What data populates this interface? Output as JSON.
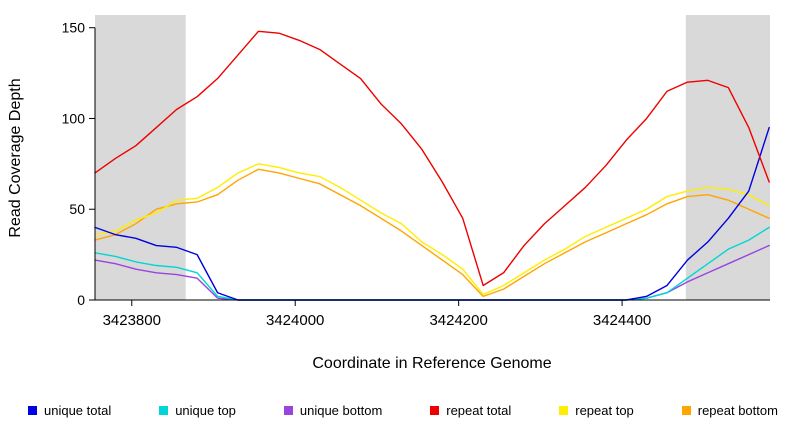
{
  "chart_data": {
    "type": "line",
    "title": "",
    "xlabel": "Coordinate in Reference Genome",
    "ylabel": "Read Coverage Depth",
    "xlim": [
      3423755,
      3424581
    ],
    "ylim": [
      0,
      157
    ],
    "xticks": [
      3423800,
      3424000,
      3424200,
      3424400
    ],
    "yticks": [
      0,
      50,
      100,
      150
    ],
    "grid": false,
    "legend_position": "bottom",
    "shaded_regions": [
      {
        "x0": 3423755,
        "x1": 3423866,
        "color": "#d9d9d9"
      },
      {
        "x0": 3424478,
        "x1": 3424581,
        "color": "#d9d9d9"
      }
    ],
    "x": [
      3423755,
      3423780,
      3423805,
      3423830,
      3423855,
      3423880,
      3423905,
      3423930,
      3423955,
      3423980,
      3424005,
      3424030,
      3424055,
      3424080,
      3424105,
      3424130,
      3424155,
      3424180,
      3424205,
      3424230,
      3424255,
      3424280,
      3424305,
      3424330,
      3424355,
      3424380,
      3424405,
      3424430,
      3424455,
      3424480,
      3424505,
      3424530,
      3424555,
      3424580
    ],
    "draw_order": [
      5,
      4,
      2,
      1,
      0,
      3
    ],
    "series": [
      {
        "name": "unique total",
        "color": "#0000e0",
        "values": [
          40,
          36,
          34,
          30,
          29,
          25,
          4,
          0,
          0,
          0,
          0,
          0,
          0,
          0,
          0,
          0,
          0,
          0,
          0,
          0,
          0,
          0,
          0,
          0,
          0,
          0,
          0,
          2,
          8,
          22,
          32,
          45,
          60,
          95
        ]
      },
      {
        "name": "unique top",
        "color": "#00d6d6",
        "values": [
          26,
          24,
          21,
          19,
          18,
          15,
          2,
          0,
          0,
          0,
          0,
          0,
          0,
          0,
          0,
          0,
          0,
          0,
          0,
          0,
          0,
          0,
          0,
          0,
          0,
          0,
          0,
          1,
          4,
          12,
          20,
          28,
          33,
          40
        ]
      },
      {
        "name": "unique bottom",
        "color": "#9944dd",
        "values": [
          22,
          20,
          17,
          15,
          14,
          12,
          1,
          0,
          0,
          0,
          0,
          0,
          0,
          0,
          0,
          0,
          0,
          0,
          0,
          0,
          0,
          0,
          0,
          0,
          0,
          0,
          0,
          1,
          4,
          10,
          15,
          20,
          25,
          30
        ]
      },
      {
        "name": "repeat total",
        "color": "#ee0000",
        "values": [
          70,
          78,
          85,
          95,
          105,
          112,
          122,
          135,
          148,
          147,
          143,
          138,
          130,
          122,
          108,
          97,
          83,
          65,
          45,
          8,
          15,
          30,
          42,
          52,
          62,
          74,
          88,
          100,
          115,
          120,
          121,
          117,
          95,
          65
        ]
      },
      {
        "name": "repeat top",
        "color": "#ffee00",
        "values": [
          36,
          38,
          44,
          48,
          55,
          56,
          62,
          70,
          75,
          73,
          70,
          68,
          62,
          55,
          48,
          42,
          32,
          25,
          17,
          3,
          8,
          15,
          22,
          28,
          35,
          40,
          45,
          50,
          57,
          60,
          62,
          61,
          58,
          52
        ]
      },
      {
        "name": "repeat bottom",
        "color": "#ffa500",
        "values": [
          33,
          36,
          42,
          50,
          53,
          54,
          58,
          66,
          72,
          70,
          67,
          64,
          58,
          52,
          45,
          38,
          30,
          22,
          14,
          2,
          6,
          13,
          20,
          26,
          32,
          37,
          42,
          47,
          53,
          57,
          58,
          55,
          50,
          45
        ]
      }
    ]
  }
}
